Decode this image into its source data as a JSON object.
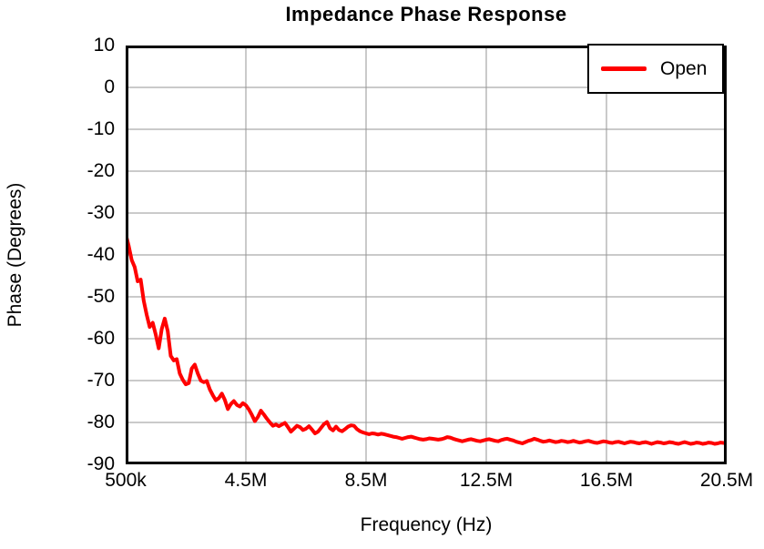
{
  "chart_data": {
    "type": "line",
    "title": "Impedance Phase Response",
    "xlabel": "Frequency (Hz)",
    "ylabel": "Phase (Degrees)",
    "xlim_mhz": [
      0.5,
      20.5
    ],
    "ylim": [
      -90,
      10
    ],
    "grid": true,
    "x_tick_values_mhz": [
      0.5,
      4.5,
      8.5,
      12.5,
      16.5,
      20.5
    ],
    "x_tick_labels": [
      "500k",
      "4.5M",
      "8.5M",
      "12.5M",
      "16.5M",
      "20.5M"
    ],
    "y_tick_values": [
      10,
      0,
      -10,
      -20,
      -30,
      -40,
      -50,
      -60,
      -70,
      -80,
      -90
    ],
    "legend": {
      "position": "top-right",
      "entries": [
        {
          "name": "Open",
          "color": "#FF0000"
        }
      ]
    },
    "colors": {
      "series": "#FF0000",
      "gridline": "#969696",
      "plot_border": "#000000",
      "background": "#FFFFFF",
      "text": "#000000"
    },
    "series": [
      {
        "name": "Open",
        "color": "#FF0000",
        "x_start_mhz": 0.5,
        "x_step_mhz": 0.1,
        "phase_deg": [
          -35.0,
          -37.8,
          -41.2,
          -42.9,
          -46.3,
          -45.9,
          -50.9,
          -54.3,
          -57.2,
          -56.2,
          -59.0,
          -62.3,
          -57.7,
          -55.2,
          -58.2,
          -64.1,
          -65.2,
          -64.9,
          -68.3,
          -69.8,
          -70.9,
          -70.6,
          -67.1,
          -66.2,
          -68.3,
          -70.0,
          -70.4,
          -70.1,
          -72.1,
          -73.5,
          -74.7,
          -74.2,
          -73.1,
          -74.6,
          -76.8,
          -75.6,
          -74.9,
          -75.8,
          -76.2,
          -75.4,
          -75.9,
          -76.9,
          -78.2,
          -79.7,
          -78.7,
          -77.2,
          -78.1,
          -79.1,
          -80.0,
          -80.8,
          -80.5,
          -80.9,
          -80.5,
          -80.1,
          -81.1,
          -82.2,
          -81.5,
          -80.8,
          -81.1,
          -81.8,
          -81.5,
          -80.9,
          -81.7,
          -82.6,
          -82.2,
          -81.3,
          -80.4,
          -79.9,
          -81.4,
          -81.9,
          -81.0,
          -81.8,
          -82.1,
          -81.6,
          -81.0,
          -80.7,
          -80.8,
          -81.6,
          -82.1,
          -82.4,
          -82.6,
          -82.8,
          -82.6,
          -82.7,
          -82.9,
          -82.7,
          -82.8,
          -83.0,
          -83.2,
          -83.4,
          -83.5,
          -83.7,
          -83.9,
          -83.7,
          -83.5,
          -83.4,
          -83.6,
          -83.8,
          -84.0,
          -84.1,
          -84.0,
          -83.8,
          -83.9,
          -84.0,
          -84.1,
          -84.0,
          -83.8,
          -83.5,
          -83.6,
          -83.9,
          -84.1,
          -84.3,
          -84.5,
          -84.3,
          -84.1,
          -84.0,
          -84.2,
          -84.4,
          -84.5,
          -84.3,
          -84.1,
          -84.0,
          -84.2,
          -84.4,
          -84.5,
          -84.2,
          -84.0,
          -83.9,
          -84.1,
          -84.3,
          -84.6,
          -84.8,
          -85.0,
          -84.7,
          -84.4,
          -84.2,
          -83.9,
          -84.1,
          -84.4,
          -84.6,
          -84.5,
          -84.3,
          -84.5,
          -84.7,
          -84.6,
          -84.4,
          -84.5,
          -84.7,
          -84.6,
          -84.4,
          -84.6,
          -84.8,
          -84.7,
          -84.5,
          -84.4,
          -84.6,
          -84.8,
          -84.9,
          -84.7,
          -84.5,
          -84.6,
          -84.8,
          -84.9,
          -84.7,
          -84.6,
          -84.8,
          -85.0,
          -84.8,
          -84.6,
          -84.7,
          -84.9,
          -85.0,
          -84.8,
          -84.7,
          -84.9,
          -85.1,
          -84.9,
          -84.7,
          -84.8,
          -85.0,
          -84.9,
          -84.7,
          -84.8,
          -85.0,
          -85.1,
          -84.9,
          -84.7,
          -84.9,
          -85.1,
          -85.0,
          -84.8,
          -84.9,
          -85.1,
          -85.0,
          -84.8,
          -84.9,
          -85.1,
          -85.0,
          -84.8,
          -84.9,
          -85.0
        ]
      }
    ]
  }
}
